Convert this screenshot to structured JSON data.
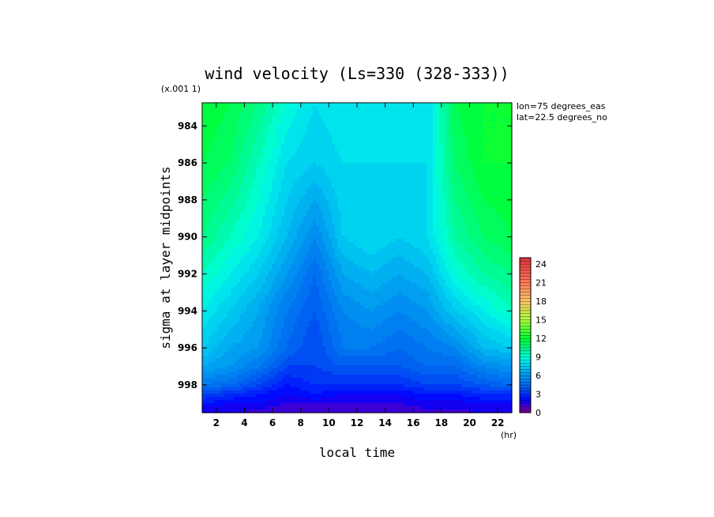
{
  "chart_data": {
    "type": "heatmap",
    "title": "wind velocity (Ls=330 (328-333))",
    "xlabel": "local time",
    "ylabel": "sigma at layer midpoints",
    "x_unit": "(hr)",
    "y_multiplier": "(x.001 1)",
    "annotations": [
      "lon=75 degrees_eas",
      "lat=22.5 degrees_no"
    ],
    "xlim": [
      1,
      23
    ],
    "ylim": [
      999.5,
      982.75
    ],
    "x_ticks": [
      2,
      4,
      6,
      8,
      10,
      12,
      14,
      16,
      18,
      20,
      22
    ],
    "y_ticks": [
      984,
      986,
      988,
      990,
      992,
      994,
      996,
      998
    ],
    "colorbar": {
      "range": [
        0,
        25
      ],
      "ticks": [
        0,
        3,
        6,
        9,
        12,
        15,
        18,
        21,
        24
      ]
    },
    "x": [
      1,
      3,
      5,
      7,
      9,
      11,
      13,
      15,
      17,
      19,
      21,
      23
    ],
    "y": [
      982.75,
      986,
      990,
      992,
      994,
      996,
      997,
      998,
      998.5,
      999,
      999.5
    ],
    "z": [
      [
        12.0,
        11.5,
        10.5,
        9.0,
        8.0,
        8.5,
        8.5,
        8.5,
        8.0,
        11.5,
        12.0,
        12.0
      ],
      [
        11.5,
        11.0,
        9.5,
        8.0,
        7.5,
        8.0,
        8.0,
        8.0,
        8.0,
        11.0,
        12.0,
        12.0
      ],
      [
        10.5,
        9.5,
        8.5,
        7.0,
        5.5,
        7.5,
        8.0,
        7.5,
        8.0,
        10.0,
        11.0,
        11.5
      ],
      [
        9.5,
        8.5,
        7.5,
        6.0,
        4.5,
        6.5,
        7.0,
        6.5,
        7.0,
        9.0,
        10.0,
        10.5
      ],
      [
        8.5,
        7.5,
        6.5,
        5.0,
        4.0,
        5.5,
        6.0,
        5.5,
        6.0,
        7.5,
        8.5,
        9.5
      ],
      [
        7.5,
        6.5,
        6.0,
        4.5,
        3.5,
        5.0,
        5.0,
        4.5,
        5.0,
        5.5,
        7.0,
        7.5
      ],
      [
        6.5,
        6.0,
        5.0,
        3.5,
        3.5,
        4.0,
        4.0,
        4.0,
        4.5,
        4.5,
        5.5,
        6.0
      ],
      [
        5.0,
        4.5,
        3.5,
        2.5,
        3.0,
        3.0,
        3.0,
        3.0,
        3.5,
        3.5,
        4.0,
        4.5
      ],
      [
        3.5,
        3.0,
        2.5,
        2.0,
        2.5,
        2.0,
        2.0,
        2.0,
        2.5,
        2.5,
        3.0,
        3.0
      ],
      [
        2.5,
        2.0,
        2.0,
        1.5,
        1.5,
        1.5,
        1.5,
        1.5,
        1.8,
        1.8,
        2.0,
        2.0
      ],
      [
        1.5,
        1.5,
        1.3,
        1.0,
        1.2,
        1.2,
        1.2,
        1.2,
        1.3,
        1.3,
        1.5,
        1.5
      ]
    ]
  }
}
